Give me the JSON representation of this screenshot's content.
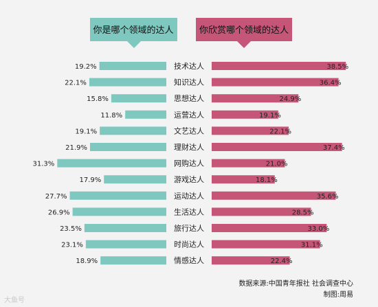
{
  "chart_data": {
    "type": "bar",
    "left_title": "你是哪个领域的达人",
    "right_title": "你欣赏哪个领域的达人",
    "categories": [
      "技术达人",
      "知识达人",
      "思想达人",
      "运营达人",
      "文艺达人",
      "理财达人",
      "网购达人",
      "游戏达人",
      "运动达人",
      "生活达人",
      "旅行达人",
      "时尚达人",
      "情感达人"
    ],
    "series": [
      {
        "name": "你是哪个领域的达人",
        "values": [
          19.2,
          22.1,
          15.8,
          11.8,
          19.1,
          21.9,
          31.3,
          17.9,
          27.7,
          26.9,
          23.5,
          23.1,
          18.9
        ]
      },
      {
        "name": "你欣赏哪个领域的达人",
        "values": [
          38.5,
          36.4,
          24.9,
          19.1,
          22.1,
          37.4,
          21.0,
          18.1,
          35.6,
          28.5,
          33.0,
          31.1,
          22.4
        ]
      }
    ],
    "value_labels_left": [
      "19.2%",
      "22.1%",
      "15.8%",
      "11.8%",
      "19.1%",
      "21.9%",
      "31.3%",
      "17.9%",
      "27.7%",
      "26.9%",
      "23.5%",
      "23.1%",
      "18.9%"
    ],
    "value_labels_right": [
      "38.5%",
      "36.4%",
      "24.9%",
      "19.1%",
      "22.1%",
      "37.4%",
      "21.0%",
      "18.1%",
      "35.6%",
      "28.5%",
      "33.0%",
      "31.1%",
      "22.4%"
    ],
    "colors": {
      "left": "#7ec8c0",
      "right": "#c65677",
      "background": "#f3f3f3"
    }
  },
  "source_line": "数据来源:中国青年报社 社会调查中心",
  "credit_line": "制图:周易",
  "watermark": "大鱼号"
}
